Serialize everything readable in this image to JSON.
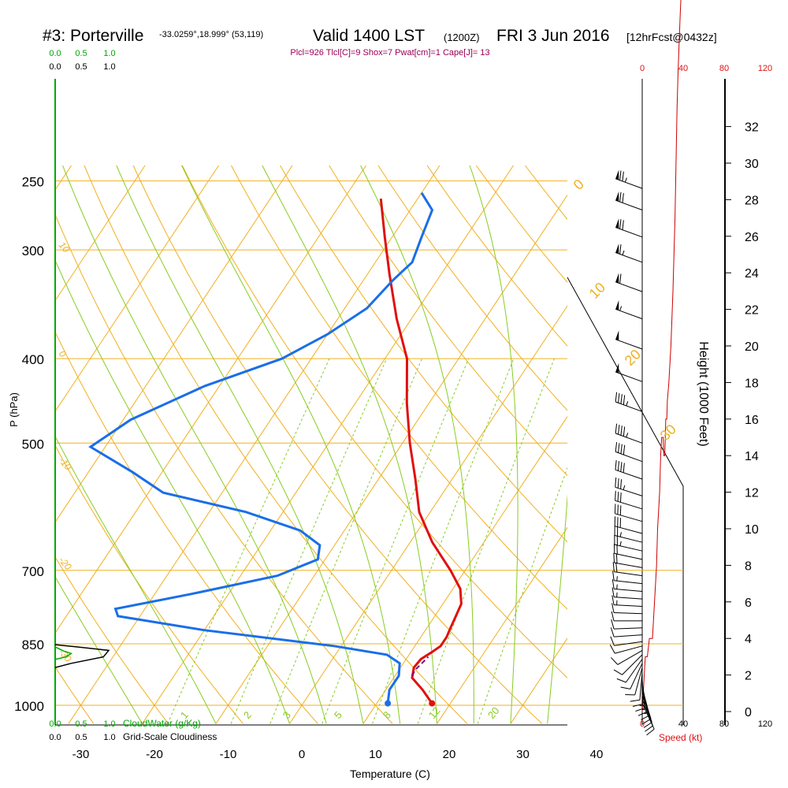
{
  "chart_data": {
    "type": "line",
    "title": {
      "station": "#3: Porterville",
      "coords": "-33.0259°,18.999° (53,119)",
      "valid": "Valid 1400 LST",
      "zulu": "(1200Z)",
      "date": "FRI 3 Jun 2016",
      "forecast": "[12hrFcst@0432z]"
    },
    "indices": "Plcl=926 Tlcl[C]=9 Shox=7 Pwat[cm]=1 Cape[J]= 13",
    "xlabel": "Temperature (C)",
    "ylabel": "P (hPa)",
    "y2label": "Height (1000 Feet)",
    "speed_label": "Speed (kt)",
    "xlim": [
      -35,
      36
    ],
    "x_ticks": [
      "-30",
      "-20",
      "-10",
      "0",
      "10",
      "20",
      "30",
      "40"
    ],
    "pressure_ticks": [
      "250",
      "300",
      "400",
      "500",
      "700",
      "850",
      "1000"
    ],
    "height_ticks": [
      "0",
      "2",
      "4",
      "6",
      "8",
      "10",
      "12",
      "14",
      "16",
      "18",
      "20",
      "22",
      "24",
      "26",
      "28",
      "30",
      "32"
    ],
    "speed_ticks_top": [
      "0",
      "40",
      "80",
      "120"
    ],
    "speed_ticks_bottom": [
      "0",
      "40",
      "80",
      "120"
    ],
    "cloud_water_ticks": [
      "0.0",
      "0.5",
      "1.0"
    ],
    "cloudiness_ticks": [
      "0.0",
      "0.5",
      "1.0"
    ],
    "cloud_water_label": "CloudWater (g/Kg)",
    "cloudiness_label": "Grid-Scale Cloudiness",
    "isotherm_labels": [
      "10",
      "0",
      "-10",
      "-20",
      "-30"
    ],
    "dry_adiabat_labels": [
      "0",
      "10",
      "20",
      "30"
    ],
    "mixing_ratio_labels": [
      "1",
      "2",
      "3",
      "5",
      "8",
      "12",
      "20"
    ],
    "series": [
      {
        "name": "Temperature",
        "color": "#e01010",
        "points": [
          [
            17.5,
            995
          ],
          [
            15.0,
            960
          ],
          [
            12.5,
            930
          ],
          [
            11.8,
            905
          ],
          [
            12,
            885
          ],
          [
            12.8,
            870
          ],
          [
            13.5,
            855
          ],
          [
            13.5,
            835
          ],
          [
            13.2,
            815
          ],
          [
            13,
            800
          ],
          [
            12.5,
            765
          ],
          [
            11,
            735
          ],
          [
            8,
            700
          ],
          [
            3,
            650
          ],
          [
            -1.5,
            600
          ],
          [
            -5,
            550
          ],
          [
            -9,
            500
          ],
          [
            -13,
            450
          ],
          [
            -17,
            400
          ],
          [
            -22,
            360
          ],
          [
            -27,
            320
          ],
          [
            -31,
            290
          ],
          [
            -35,
            262
          ]
        ]
      },
      {
        "name": "Dew Point",
        "color": "#1a6ee8",
        "points": [
          [
            11.5,
            995
          ],
          [
            10.5,
            960
          ],
          [
            10.5,
            925
          ],
          [
            9.5,
            895
          ],
          [
            7,
            875
          ],
          [
            -1,
            855
          ],
          [
            -20,
            820
          ],
          [
            -33,
            790
          ],
          [
            -34,
            775
          ],
          [
            -25,
            745
          ],
          [
            -15,
            710
          ],
          [
            -11,
            680
          ],
          [
            -12,
            655
          ],
          [
            -16,
            630
          ],
          [
            -25,
            600
          ],
          [
            -38,
            570
          ],
          [
            -44,
            540
          ],
          [
            -52,
            505
          ],
          [
            -49,
            470
          ],
          [
            -42,
            430
          ],
          [
            -34,
            400
          ],
          [
            -30,
            375
          ],
          [
            -27,
            350
          ],
          [
            -26,
            325
          ],
          [
            -25,
            310
          ],
          [
            -26,
            290
          ],
          [
            -27,
            270
          ],
          [
            -30,
            258
          ]
        ]
      },
      {
        "name": "Parcel",
        "color": "#800080",
        "points": [
          [
            12.3,
            925
          ],
          [
            12.2,
            910
          ],
          [
            12.5,
            895
          ],
          [
            12.8,
            880
          ]
        ]
      }
    ],
    "surface_temp": 17.5,
    "surface_dewpoint": 11.5,
    "wind_barbs": [
      {
        "p": 995,
        "dir": 155,
        "spd": 10
      },
      {
        "p": 985,
        "dir": 158,
        "spd": 11
      },
      {
        "p": 975,
        "dir": 160,
        "spd": 12
      },
      {
        "p": 965,
        "dir": 162,
        "spd": 12
      },
      {
        "p": 955,
        "dir": 165,
        "spd": 13
      },
      {
        "p": 945,
        "dir": 170,
        "spd": 13
      },
      {
        "p": 935,
        "dir": 175,
        "spd": 13
      },
      {
        "p": 925,
        "dir": 180,
        "spd": 12
      },
      {
        "p": 915,
        "dir": 185,
        "spd": 12
      },
      {
        "p": 905,
        "dir": 195,
        "spd": 11
      },
      {
        "p": 895,
        "dir": 205,
        "spd": 10
      },
      {
        "p": 885,
        "dir": 215,
        "spd": 10
      },
      {
        "p": 875,
        "dir": 225,
        "spd": 10
      },
      {
        "p": 865,
        "dir": 240,
        "spd": 10
      },
      {
        "p": 855,
        "dir": 255,
        "spd": 10
      },
      {
        "p": 845,
        "dir": 262,
        "spd": 11
      },
      {
        "p": 830,
        "dir": 266,
        "spd": 12
      },
      {
        "p": 815,
        "dir": 268,
        "spd": 12
      },
      {
        "p": 800,
        "dir": 270,
        "spd": 12
      },
      {
        "p": 785,
        "dir": 272,
        "spd": 12
      },
      {
        "p": 770,
        "dir": 273,
        "spd": 13
      },
      {
        "p": 755,
        "dir": 274,
        "spd": 14
      },
      {
        "p": 740,
        "dir": 275,
        "spd": 15
      },
      {
        "p": 725,
        "dir": 276,
        "spd": 16
      },
      {
        "p": 710,
        "dir": 278,
        "spd": 18
      },
      {
        "p": 695,
        "dir": 280,
        "spd": 20
      },
      {
        "p": 680,
        "dir": 282,
        "spd": 22
      },
      {
        "p": 665,
        "dir": 283,
        "spd": 24
      },
      {
        "p": 650,
        "dir": 284,
        "spd": 26
      },
      {
        "p": 635,
        "dir": 285,
        "spd": 28
      },
      {
        "p": 615,
        "dir": 286,
        "spd": 30
      },
      {
        "p": 595,
        "dir": 287,
        "spd": 32
      },
      {
        "p": 575,
        "dir": 288,
        "spd": 35
      },
      {
        "p": 550,
        "dir": 289,
        "spd": 38
      },
      {
        "p": 525,
        "dir": 290,
        "spd": 40
      },
      {
        "p": 500,
        "dir": 290,
        "spd": 43
      },
      {
        "p": 460,
        "dir": 290,
        "spd": 46
      },
      {
        "p": 425,
        "dir": 290,
        "spd": 48
      },
      {
        "p": 390,
        "dir": 290,
        "spd": 50
      },
      {
        "p": 360,
        "dir": 290,
        "spd": 55
      },
      {
        "p": 335,
        "dir": 290,
        "spd": 60
      },
      {
        "p": 310,
        "dir": 290,
        "spd": 65
      },
      {
        "p": 290,
        "dir": 290,
        "spd": 70
      },
      {
        "p": 270,
        "dir": 290,
        "spd": 72
      },
      {
        "p": 255,
        "dir": 290,
        "spd": 75
      }
    ],
    "speed_profile": [
      [
        0,
        0
      ],
      [
        2,
        2
      ],
      [
        3,
        3
      ],
      [
        5,
        3
      ],
      [
        7,
        4
      ],
      [
        9,
        4
      ],
      [
        10,
        4
      ],
      [
        11,
        5
      ],
      [
        12,
        6
      ],
      [
        14,
        8
      ],
      [
        15,
        10
      ],
      [
        16,
        11
      ],
      [
        17,
        12
      ],
      [
        18,
        14
      ],
      [
        19,
        15
      ],
      [
        20,
        15
      ],
      [
        20.5,
        15
      ],
      [
        21,
        14
      ],
      [
        22,
        14
      ],
      [
        23,
        16
      ],
      [
        24,
        16
      ],
      [
        24.5,
        17
      ],
      [
        26,
        18
      ],
      [
        28,
        20
      ],
      [
        30,
        23
      ],
      [
        31,
        25
      ],
      [
        32,
        27
      ],
      [
        33,
        30
      ],
      [
        34,
        33
      ],
      [
        35,
        35
      ],
      [
        37,
        38
      ],
      [
        40,
        42
      ],
      [
        44,
        46
      ],
      [
        48,
        50
      ],
      [
        52,
        55
      ],
      [
        56,
        60
      ],
      [
        60,
        65
      ],
      [
        63,
        70
      ],
      [
        66,
        73
      ],
      [
        70,
        76
      ],
      [
        76,
        79
      ],
      [
        85,
        82
      ],
      [
        95,
        85
      ],
      [
        105,
        88
      ],
      [
        110,
        90
      ],
      [
        114,
        92
      ]
    ],
    "cloud_water_profile": [
      [
        0,
        857
      ],
      [
        0.15,
        866
      ],
      [
        0.3,
        872
      ],
      [
        0.2,
        880
      ],
      [
        0,
        886
      ]
    ],
    "cloudiness_profile": [
      [
        0,
        852
      ],
      [
        0.4,
        857
      ],
      [
        1.0,
        865
      ],
      [
        0.9,
        880
      ],
      [
        0.3,
        895
      ],
      [
        0,
        905
      ]
    ]
  }
}
